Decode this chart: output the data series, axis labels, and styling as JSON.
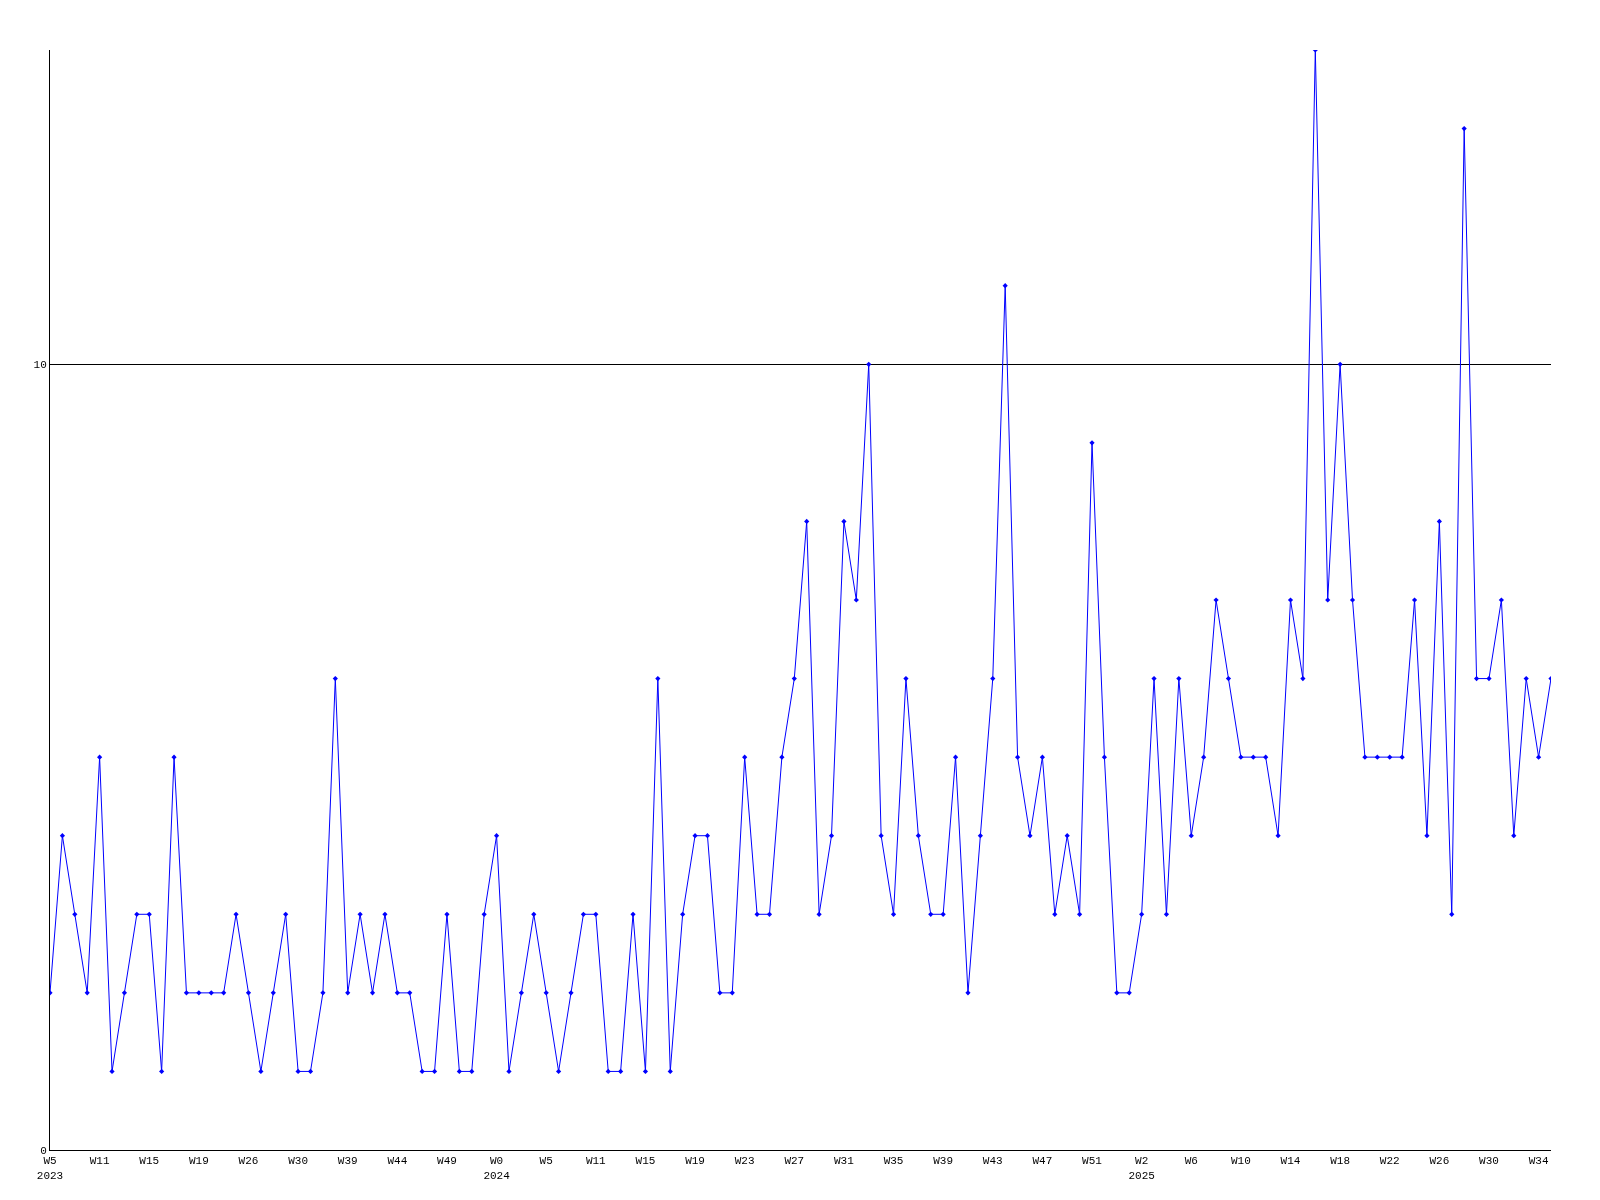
{
  "chart_data": {
    "type": "line",
    "categories": [
      "W5\n2023",
      null,
      null,
      null,
      "W11",
      null,
      null,
      null,
      "W15",
      null,
      null,
      null,
      "W19",
      null,
      null,
      null,
      "W26",
      null,
      null,
      null,
      "W30",
      null,
      null,
      null,
      "W39",
      null,
      null,
      null,
      "W44",
      null,
      null,
      null,
      "W49",
      null,
      null,
      null,
      "W0\n2024",
      null,
      null,
      null,
      "W5",
      null,
      null,
      null,
      "W11",
      null,
      null,
      null,
      "W15",
      null,
      null,
      null,
      "W19",
      null,
      null,
      null,
      "W23",
      null,
      null,
      null,
      "W27",
      null,
      null,
      null,
      "W31",
      null,
      null,
      null,
      "W35",
      null,
      null,
      null,
      "W39",
      null,
      null,
      null,
      "W43",
      null,
      null,
      null,
      "W47",
      null,
      null,
      null,
      "W51",
      null,
      null,
      null,
      "W2\n2025",
      null,
      null,
      null,
      "W6",
      null,
      null,
      null,
      "W10",
      null,
      null,
      null,
      "W14",
      null,
      null,
      null,
      "W18",
      null,
      null,
      null,
      "W22",
      null,
      null,
      null,
      "W26",
      null,
      null,
      null,
      "W30",
      null,
      null,
      null,
      "W34",
      null
    ],
    "series": [
      {
        "color": "#0000ff",
        "values": [
          2,
          4,
          3,
          2,
          5,
          1,
          2,
          3,
          3,
          1,
          5,
          2,
          2,
          2,
          2,
          3,
          2,
          1,
          2,
          3,
          1,
          1,
          2,
          6,
          2,
          3,
          2,
          3,
          2,
          2,
          1,
          1,
          3,
          1,
          1,
          3,
          4,
          1,
          2,
          3,
          2,
          1,
          2,
          3,
          3,
          1,
          1,
          3,
          1,
          6,
          1,
          3,
          4,
          4,
          2,
          2,
          5,
          3,
          3,
          5,
          6,
          8,
          3,
          4,
          8,
          7,
          10,
          4,
          3,
          6,
          4,
          3,
          3,
          5,
          2,
          4,
          6,
          11,
          5,
          4,
          5,
          3,
          4,
          3,
          9,
          5,
          2,
          2,
          3,
          6,
          3,
          6,
          4,
          5,
          7,
          6,
          5,
          5,
          5,
          4,
          7,
          6,
          14,
          7,
          10,
          7,
          5,
          5,
          5,
          5,
          7,
          4,
          8,
          3,
          13,
          6,
          6,
          7,
          4,
          6,
          5,
          6
        ]
      }
    ],
    "ylim": [
      0,
      14
    ],
    "yticks": [
      0,
      10
    ],
    "grid": "y",
    "marker": "diamond",
    "line_style": "solid",
    "legend": false
  }
}
